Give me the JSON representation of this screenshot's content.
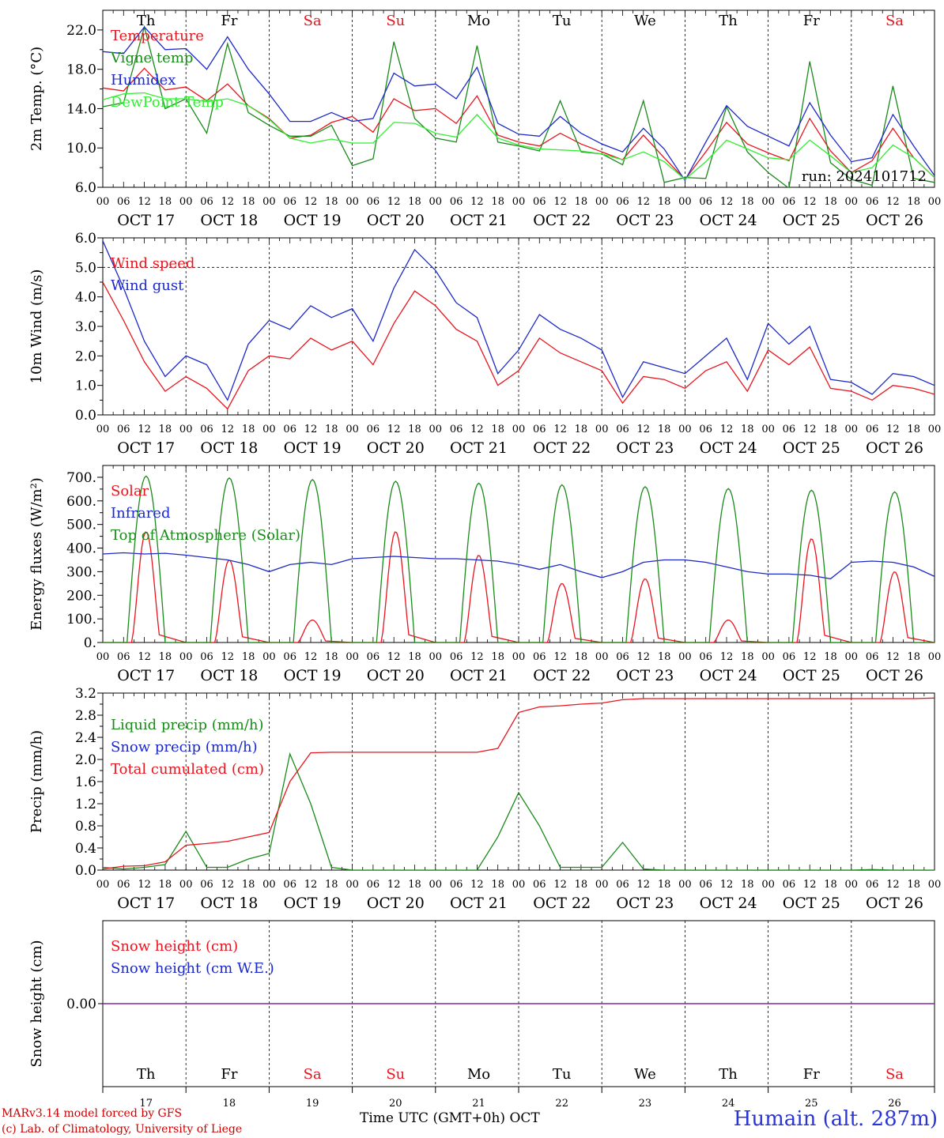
{
  "footer": {
    "model_line": "MARv3.14 model forced by GFS",
    "credit_line": "(c) Lab. of Climatology, University of Liege",
    "time_axis_label": "Time UTC (GMT+0h) OCT",
    "station": "Humain (alt. 287m)"
  },
  "axis": {
    "hour_ticks": [
      "00",
      "06",
      "12",
      "18"
    ],
    "last_tick": "00",
    "dates": [
      "OCT 17",
      "OCT 18",
      "OCT 19",
      "OCT 20",
      "OCT 21",
      "OCT 22",
      "OCT 23",
      "OCT 24",
      "OCT 25",
      "OCT 26"
    ],
    "weekdays": [
      "Th",
      "Fr",
      "Sa",
      "Su",
      "Mo",
      "Tu",
      "We",
      "Th",
      "Fr",
      "Sa"
    ],
    "weekend_color": "#e8141e",
    "day_numbers": [
      "17",
      "18",
      "19",
      "20",
      "21",
      "22",
      "23",
      "24",
      "25",
      "26"
    ]
  },
  "chart_data": [
    {
      "type": "line",
      "id": "temp",
      "ylabel": "2m Temp. (°C)",
      "ylim": [
        6,
        24
      ],
      "yticks": [
        "6.0",
        "10.0",
        "14.0",
        "18.0",
        "22.0"
      ],
      "annotation": "run: 2024101712",
      "x_note": "series sampled every 6h from OCT 17 00 to OCT 27 00",
      "series": [
        {
          "name": "Temperature",
          "color": "#e8141e",
          "values": [
            16.1,
            15.8,
            18.1,
            15.9,
            16.2,
            14.8,
            16.5,
            14.3,
            13.0,
            11.0,
            11.3,
            12.6,
            13.2,
            11.6,
            15.0,
            13.8,
            14.0,
            12.5,
            15.3,
            11.3,
            10.6,
            10.2,
            11.5,
            10.4,
            9.6,
            8.8,
            11.3,
            9.0,
            6.8,
            9.6,
            12.6,
            10.4,
            9.5,
            8.7,
            13.0,
            9.7,
            7.5,
            8.7,
            12.0,
            9.0,
            7.0
          ]
        },
        {
          "name": "Vigne temp",
          "color": "#1a8a1a",
          "values": [
            14.2,
            14.6,
            22.3,
            14.0,
            15.0,
            11.5,
            20.6,
            13.6,
            12.3,
            11.2,
            11.2,
            12.3,
            8.2,
            8.9,
            20.8,
            13.0,
            11.0,
            10.6,
            20.4,
            10.6,
            10.2,
            9.7,
            14.8,
            9.6,
            9.4,
            8.3,
            14.8,
            6.5,
            7.0,
            6.9,
            14.2,
            9.6,
            7.5,
            5.9,
            18.8,
            8.5,
            6.8,
            6.2,
            16.3,
            6.9,
            6.5
          ]
        },
        {
          "name": "Humidex",
          "color": "#1c28c8",
          "values": [
            19.8,
            19.6,
            22.3,
            20.0,
            20.1,
            18.0,
            21.3,
            18.0,
            15.5,
            12.7,
            12.7,
            13.6,
            12.7,
            13.0,
            17.6,
            16.3,
            16.5,
            15.0,
            18.2,
            12.5,
            11.4,
            11.2,
            13.2,
            11.5,
            10.4,
            9.6,
            12.0,
            9.9,
            6.7,
            10.6,
            14.3,
            12.2,
            11.2,
            10.2,
            14.6,
            11.3,
            8.6,
            9.0,
            13.4,
            10.2,
            7.2
          ]
        },
        {
          "name": "DewPoint Temp",
          "color": "#33ee33",
          "values": [
            14.9,
            15.5,
            15.6,
            15.0,
            15.0,
            14.7,
            15.0,
            14.3,
            12.9,
            11.0,
            10.5,
            10.9,
            10.5,
            10.5,
            12.6,
            12.5,
            11.5,
            11.1,
            13.4,
            11.0,
            10.3,
            9.9,
            9.8,
            9.7,
            9.4,
            8.8,
            9.6,
            8.6,
            6.8,
            8.6,
            10.8,
            9.9,
            9.0,
            8.8,
            10.8,
            9.2,
            7.5,
            8.0,
            10.3,
            9.0,
            7.0
          ]
        }
      ],
      "legend": [
        "Temperature",
        "Vigne temp",
        "Humidex",
        "DewPoint Temp"
      ],
      "legend_placement": "top-left"
    },
    {
      "type": "line",
      "id": "wind",
      "ylabel": "10m Wind (m/s)",
      "ylim": [
        0,
        6
      ],
      "yticks": [
        "0.0",
        "1.0",
        "2.0",
        "3.0",
        "4.0",
        "5.0",
        "6.0"
      ],
      "reference_line": 5.0,
      "series": [
        {
          "name": "Wind speed",
          "color": "#e8141e",
          "values": [
            4.5,
            3.2,
            1.8,
            0.8,
            1.3,
            0.9,
            0.2,
            1.5,
            2.0,
            1.9,
            2.6,
            2.2,
            2.5,
            1.7,
            3.1,
            4.2,
            3.7,
            2.9,
            2.5,
            1.0,
            1.5,
            2.6,
            2.1,
            1.8,
            1.5,
            0.4,
            1.3,
            1.2,
            0.9,
            1.5,
            1.8,
            0.8,
            2.2,
            1.7,
            2.3,
            0.9,
            0.8,
            0.5,
            1.0,
            0.9,
            0.7
          ]
        },
        {
          "name": "Wind gust",
          "color": "#1c28c8",
          "values": [
            5.9,
            4.3,
            2.5,
            1.3,
            2.0,
            1.7,
            0.5,
            2.4,
            3.2,
            2.9,
            3.7,
            3.3,
            3.6,
            2.5,
            4.3,
            5.6,
            4.9,
            3.8,
            3.3,
            1.4,
            2.2,
            3.4,
            2.9,
            2.6,
            2.2,
            0.6,
            1.8,
            1.6,
            1.4,
            2.0,
            2.6,
            1.2,
            3.1,
            2.4,
            3.0,
            1.2,
            1.1,
            0.7,
            1.4,
            1.3,
            1.0
          ]
        }
      ],
      "legend": [
        "Wind speed",
        "Wind gust"
      ],
      "legend_placement": "top-left"
    },
    {
      "type": "line",
      "id": "energy",
      "ylabel": "Energy fluxes (W/m²)",
      "ylim": [
        0,
        750
      ],
      "yticks": [
        "0.",
        "100.",
        "200.",
        "300.",
        "400.",
        "500.",
        "600.",
        "700."
      ],
      "peak_hour": 12.5,
      "series": [
        {
          "name": "Solar",
          "color": "#e8141e",
          "day_peaks": [
            470,
            350,
            95,
            470,
            370,
            250,
            270,
            95,
            440,
            300
          ]
        },
        {
          "name": "Infrared",
          "color": "#1c28c8",
          "values": [
            375,
            380,
            375,
            378,
            370,
            360,
            350,
            330,
            300,
            330,
            340,
            330,
            355,
            360,
            365,
            360,
            355,
            355,
            350,
            345,
            330,
            310,
            330,
            300,
            275,
            300,
            340,
            350,
            350,
            340,
            320,
            300,
            290,
            290,
            285,
            270,
            340,
            345,
            340,
            320,
            280
          ]
        },
        {
          "name": "Top of Atmosphere (Solar)",
          "color": "#1a8a1a",
          "day_peaks": [
            705,
            697,
            690,
            683,
            675,
            668,
            660,
            652,
            645,
            638
          ]
        }
      ],
      "legend": [
        "Solar",
        "Infrared",
        "Top of Atmosphere (Solar)"
      ],
      "legend_placement": "top-left"
    },
    {
      "type": "line",
      "id": "precip",
      "ylabel": "Precip (mm/h)",
      "ylim": [
        0,
        3.2
      ],
      "yticks": [
        "0.0",
        "0.4",
        "0.8",
        "1.2",
        "1.6",
        "2.0",
        "2.4",
        "2.8",
        "3.2"
      ],
      "series": [
        {
          "name": "Liquid precip (mm/h)",
          "color": "#1a8a1a",
          "values": [
            0.05,
            0.02,
            0.05,
            0.1,
            0.7,
            0.05,
            0.05,
            0.2,
            0.3,
            2.1,
            1.2,
            0.05,
            0,
            0,
            0,
            0,
            0,
            0,
            0,
            0.6,
            1.4,
            0.8,
            0.05,
            0.05,
            0.05,
            0.5,
            0.02,
            0,
            0,
            0,
            0,
            0,
            0,
            0,
            0,
            0,
            0,
            0.01,
            0,
            0,
            0
          ]
        },
        {
          "name": "Snow precip (mm/h)",
          "color": "#1c28c8",
          "values": []
        },
        {
          "name": "Total cumulated (cm)",
          "color": "#e8141e",
          "values": [
            0.02,
            0.07,
            0.08,
            0.15,
            0.45,
            0.48,
            0.52,
            0.6,
            0.68,
            1.6,
            2.12,
            2.13,
            2.13,
            2.13,
            2.13,
            2.13,
            2.13,
            2.13,
            2.13,
            2.2,
            2.85,
            2.95,
            2.97,
            3.0,
            3.02,
            3.08,
            3.1,
            3.1,
            3.1,
            3.1,
            3.1,
            3.1,
            3.1,
            3.1,
            3.1,
            3.1,
            3.1,
            3.1,
            3.1,
            3.1,
            3.11
          ]
        }
      ],
      "legend": [
        "Liquid precip (mm/h)",
        "Snow precip (mm/h)",
        "Total cumulated (cm)"
      ],
      "legend_placement": "top-left"
    },
    {
      "type": "line",
      "id": "snow",
      "ylabel": "Snow height (cm)",
      "ylim": [
        -1,
        1
      ],
      "yticks": [
        "0.00"
      ],
      "series": [
        {
          "name": "Snow height (cm)",
          "color": "#e8141e",
          "values": [
            0,
            0
          ]
        },
        {
          "name": "Snow height (cm W.E.)",
          "color": "#1c28c8",
          "values": [
            0,
            0
          ]
        }
      ],
      "line_color": "#7b1fa2",
      "legend": [
        "Snow height (cm)",
        "Snow height (cm W.E.)"
      ],
      "legend_placement": "top-left"
    }
  ]
}
